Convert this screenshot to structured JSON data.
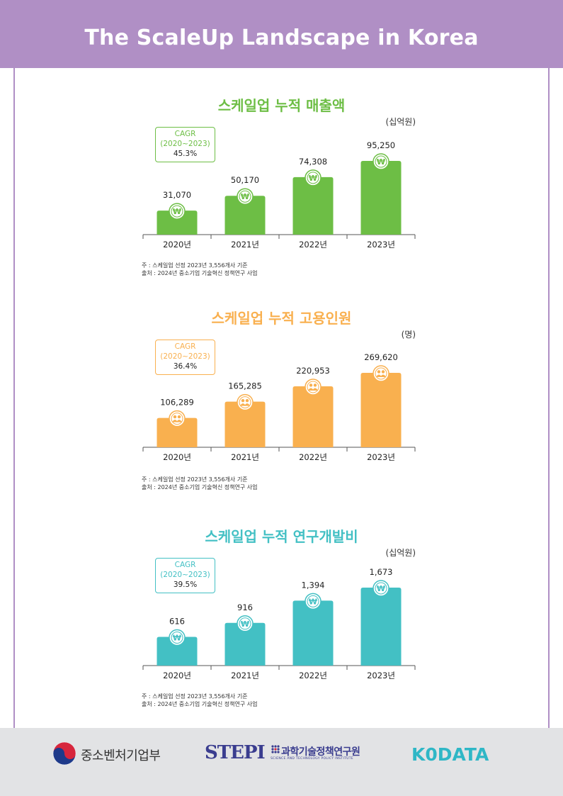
{
  "header": {
    "title": "The ScaleUp Landscape in Korea"
  },
  "chart_data": [
    {
      "type": "bar",
      "title": "스케일업 누적 매출액",
      "unit": "(십억원)",
      "categories": [
        "2020년",
        "2021년",
        "2022년",
        "2023년"
      ],
      "values": [
        31070,
        50170,
        74308,
        95250
      ],
      "value_labels": [
        "31,070",
        "50,170",
        "74,308",
        "95,250"
      ],
      "icon": "won-icon",
      "cagr": {
        "label": "CAGR",
        "period": "(2020~2023)",
        "value": "45.3%"
      },
      "color": "#6dbe45",
      "notes": [
        "주 : 스케일업 선정 2023년 3,556개사 기준",
        "출처 : 2024년 중소기업 기술혁신 정책연구 사업"
      ]
    },
    {
      "type": "bar",
      "title": "스케일업 누적 고용인원",
      "unit": "(명)",
      "categories": [
        "2020년",
        "2021년",
        "2022년",
        "2023년"
      ],
      "values": [
        106289,
        165285,
        220953,
        269620
      ],
      "value_labels": [
        "106,289",
        "165,285",
        "220,953",
        "269,620"
      ],
      "icon": "people-icon",
      "cagr": {
        "label": "CAGR",
        "period": "(2020~2023)",
        "value": "36.4%"
      },
      "color": "#f9b04f",
      "notes": [
        "주 : 스케일업 선정 2023년 3,556개사 기준",
        "출처 : 2024년 중소기업 기술혁신 정책연구 사업"
      ]
    },
    {
      "type": "bar",
      "title": "스케일업 누적 연구개발비",
      "unit": "(십억원)",
      "categories": [
        "2020년",
        "2021년",
        "2022년",
        "2023년"
      ],
      "values": [
        616,
        916,
        1394,
        1673
      ],
      "value_labels": [
        "616",
        "916",
        "1,394",
        "1,673"
      ],
      "icon": "won-icon",
      "cagr": {
        "label": "CAGR",
        "period": "(2020~2023)",
        "value": "39.5%"
      },
      "color": "#43c0c4",
      "notes": [
        "주 : 스케일업 선정 2023년 3,556개사 기준",
        "출처 : 2024년 중소기업 기술혁신 정책연구 사업"
      ]
    }
  ],
  "footer": {
    "mss_name": "중소벤처기업부",
    "stepi_mark": "STEPI",
    "stepi_name": "과학기술정책연구원",
    "stepi_sub": "SCIENCE AND TECHNOLOGY POLICY INSTITUTE",
    "kodata": "K0DATA"
  }
}
